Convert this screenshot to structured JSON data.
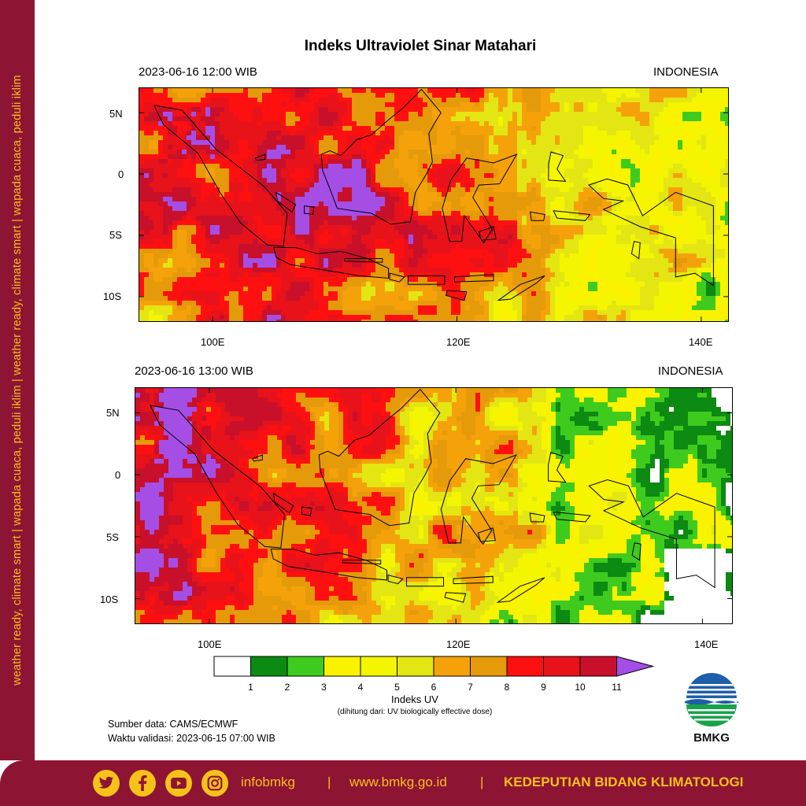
{
  "sidebar": {
    "text": "weather ready, climate smart | wapada cuaca, peduli iklim | weather ready, climate smart | wapada cuaca, peduli iklim"
  },
  "title": "Indeks Ultraviolet Sinar Matahari",
  "maps": [
    {
      "datetime": "2023-06-16  12:00 WIB",
      "region": "INDONESIA",
      "hour": 12
    },
    {
      "datetime": "2023-06-16  13:00 WIB",
      "region": "INDONESIA",
      "hour": 13
    }
  ],
  "axes": {
    "lat_labels": [
      "5N",
      "0",
      "5S",
      "10S"
    ],
    "lon_labels": [
      "100E",
      "120E",
      "140E"
    ]
  },
  "legend": {
    "title": "Indeks UV",
    "subtitle": "(dihitung dari: UV biologically effective dose)",
    "ticks": [
      "1",
      "2",
      "3",
      "4",
      "5",
      "6",
      "7",
      "8",
      "9",
      "10",
      "11"
    ],
    "colors": [
      "#ffffff",
      "#0c8a12",
      "#3fcb1e",
      "#fbf200",
      "#f4f500",
      "#e3e612",
      "#f5a20a",
      "#e59a0a",
      "#ff1010",
      "#e8121a",
      "#c8102a",
      "#a44ee6"
    ]
  },
  "source": {
    "line1": "Sumber data: CAMS/ECMWF",
    "line2": "Waktu validasi: 2023-06-15 07:00 WIB"
  },
  "logo": {
    "text": "BMKG"
  },
  "footer": {
    "handle": "infobmkg",
    "sep1": "|",
    "url": "www.bmkg.go.id",
    "sep2": "|",
    "org": "KEDEPUTIAN BIDANG KLIMATOLOGI",
    "icons": [
      "twitter-icon",
      "facebook-icon",
      "youtube-icon",
      "instagram-icon"
    ]
  }
}
